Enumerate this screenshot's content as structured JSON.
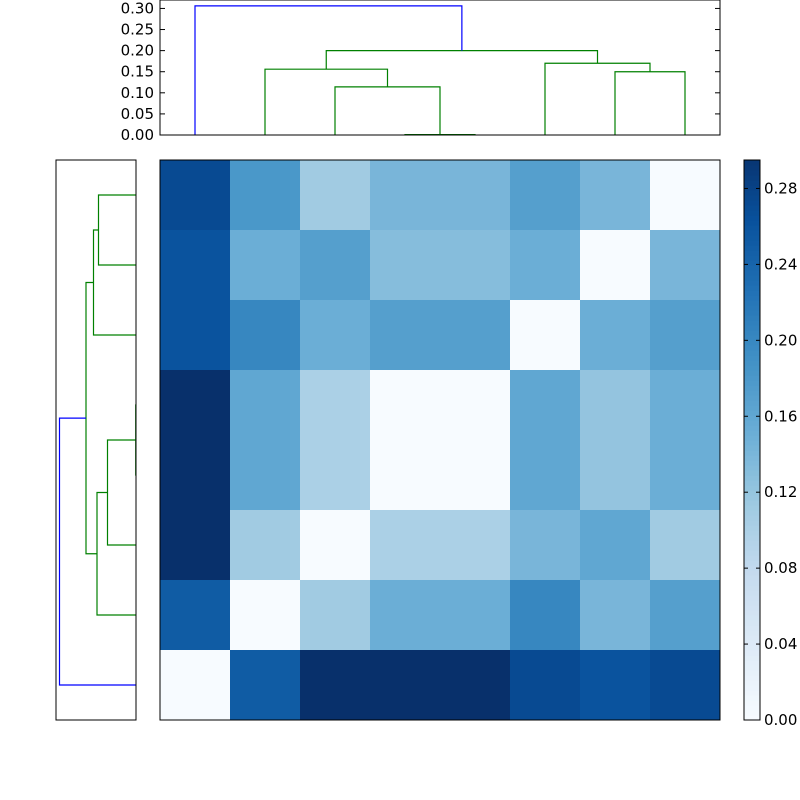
{
  "chart_data": [
    {
      "type": "dendrogram",
      "orientation": "top",
      "ylim": [
        0,
        0.32
      ],
      "yticks": [
        "0.00",
        "0.05",
        "0.10",
        "0.15",
        "0.20",
        "0.25",
        "0.30"
      ],
      "ytick_values": [
        0,
        0.05,
        0.1,
        0.15,
        0.2,
        0.25,
        0.3
      ],
      "leaf_count": 8,
      "links": [
        {
          "left_leaf": 3,
          "right_leaf": 4,
          "height": 0.001,
          "color": "#008000"
        },
        {
          "left_leaf": 2,
          "right_leaf": 3.5,
          "height": 0.114,
          "color": "#008000"
        },
        {
          "left_leaf": 1,
          "right_leaf": 2.75,
          "height": 0.156,
          "color": "#008000"
        },
        {
          "left_leaf": 6,
          "right_leaf": 7,
          "height": 0.15,
          "color": "#008000"
        },
        {
          "left_leaf": 5,
          "right_leaf": 6.5,
          "height": 0.17,
          "color": "#008000"
        },
        {
          "left_leaf": 1.875,
          "right_leaf": 5.75,
          "height": 0.2,
          "color": "#008000"
        },
        {
          "left_leaf": 0,
          "right_leaf": 3.8125,
          "height": 0.306,
          "color": "#0000ff"
        }
      ]
    },
    {
      "type": "dendrogram",
      "orientation": "left",
      "leaf_count": 8,
      "links": [
        {
          "top_leaf": 4,
          "bottom_leaf": 3,
          "height": 0.001,
          "color": "#008000"
        },
        {
          "top_leaf": 5,
          "bottom_leaf": 3.5,
          "height": 0.114,
          "color": "#008000"
        },
        {
          "top_leaf": 6,
          "bottom_leaf": 4.25,
          "height": 0.156,
          "color": "#008000"
        },
        {
          "top_leaf": 0,
          "bottom_leaf": 1,
          "height": 0.15,
          "color": "#008000"
        },
        {
          "top_leaf": 0.5,
          "bottom_leaf": 2,
          "height": 0.17,
          "color": "#008000"
        },
        {
          "top_leaf": 1.25,
          "bottom_leaf": 5.125,
          "height": 0.2,
          "color": "#008000"
        },
        {
          "top_leaf": 3.1875,
          "bottom_leaf": 7,
          "height": 0.306,
          "color": "#0000ff"
        }
      ]
    },
    {
      "type": "heatmap",
      "colormap": "Blues",
      "vmin": 0,
      "vmax": 0.3,
      "rows": 8,
      "cols": 8,
      "values": [
        [
          0.27,
          0.18,
          0.11,
          0.14,
          0.14,
          0.17,
          0.14,
          0.0
        ],
        [
          0.26,
          0.15,
          0.17,
          0.13,
          0.13,
          0.15,
          0.0,
          0.14
        ],
        [
          0.26,
          0.2,
          0.15,
          0.17,
          0.17,
          0.0,
          0.15,
          0.17
        ],
        [
          0.3,
          0.16,
          0.1,
          0.0,
          0.0,
          0.16,
          0.12,
          0.15
        ],
        [
          0.3,
          0.16,
          0.1,
          0.0,
          0.0,
          0.16,
          0.12,
          0.15
        ],
        [
          0.3,
          0.11,
          0.0,
          0.1,
          0.1,
          0.14,
          0.16,
          0.11
        ],
        [
          0.25,
          0.0,
          0.11,
          0.15,
          0.15,
          0.2,
          0.14,
          0.17
        ],
        [
          0.0,
          0.25,
          0.3,
          0.3,
          0.3,
          0.27,
          0.26,
          0.27
        ]
      ]
    },
    {
      "type": "colorbar",
      "colormap": "Blues",
      "ticks": [
        "0.00",
        "0.04",
        "0.08",
        "0.12",
        "0.16",
        "0.20",
        "0.24",
        "0.28"
      ],
      "tick_values": [
        0,
        0.04,
        0.08,
        0.12,
        0.16,
        0.2,
        0.24,
        0.28
      ],
      "vmin": 0,
      "vmax": 0.295
    }
  ]
}
